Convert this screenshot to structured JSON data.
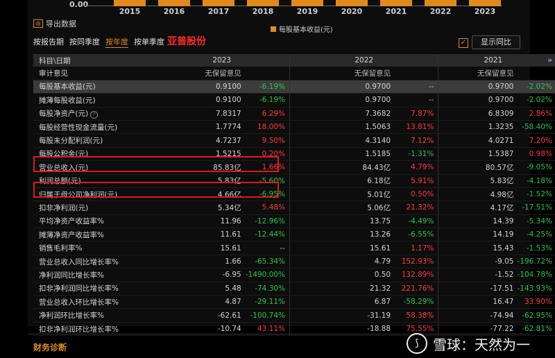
{
  "chart": {
    "y_zero_label": "0.00",
    "years": [
      "2015",
      "2016",
      "2017",
      "2018",
      "2019",
      "2020",
      "2021",
      "2022",
      "2023"
    ],
    "legend": "每股基本收益(元)",
    "accent_color": "#e08a1e"
  },
  "toolbar": {
    "export_label": "导出数据",
    "tabs": [
      "按报告期",
      "按同季度",
      "按年度",
      "按单季度"
    ],
    "active_tab": "按年度",
    "company_name": "亚普股份",
    "show_yoy_label": "显示同比",
    "show_yoy_checked": true
  },
  "table": {
    "header": {
      "label": "科目\\日期",
      "years": [
        "2023",
        "2022",
        "2021"
      ],
      "more": "»"
    },
    "rows": [
      {
        "label": "审计意见",
        "v": [
          "无保留意见",
          "",
          "无保留意见",
          "",
          "无保留意见",
          ""
        ],
        "t": [
          "neu",
          "neu",
          "neu",
          "neu",
          "neu",
          "neu"
        ]
      },
      {
        "label": "每股基本收益(元)",
        "v": [
          "0.9100",
          "-6.19%",
          "0.9700",
          "--",
          "0.9700",
          "-2.02%"
        ],
        "t": [
          "",
          "neg",
          "",
          "neu",
          "",
          "neg"
        ],
        "hl": true
      },
      {
        "label": "摊薄每股收益(元)",
        "v": [
          "0.9100",
          "-6.19%",
          "0.9700",
          "--",
          "0.9700",
          "-2.02%"
        ],
        "t": [
          "",
          "neg",
          "",
          "neu",
          "",
          "neg"
        ]
      },
      {
        "label": "每股净资产(元)",
        "v": [
          "7.8317",
          "6.29%",
          "7.3682",
          "7.87%",
          "6.8309",
          "2.86%"
        ],
        "t": [
          "",
          "pos",
          "",
          "pos",
          "",
          "pos"
        ],
        "help": true
      },
      {
        "label": "每股经营性现金流量(元)",
        "v": [
          "1.7774",
          "18.00%",
          "1.5063",
          "13.81%",
          "1.3235",
          "-58.40%"
        ],
        "t": [
          "",
          "pos",
          "",
          "pos",
          "",
          "neg"
        ]
      },
      {
        "label": "每股未分配利润(元)",
        "v": [
          "4.7237",
          "9.50%",
          "4.3140",
          "7.12%",
          "4.0271",
          "7.20%"
        ],
        "t": [
          "",
          "pos",
          "",
          "pos",
          "",
          "pos"
        ]
      },
      {
        "label": "每股公积金(元)",
        "v": [
          "1.5215",
          "0.20%",
          "1.5185",
          "-1.31%",
          "1.5387",
          "0.98%"
        ],
        "t": [
          "",
          "pos",
          "",
          "neg",
          "",
          "pos"
        ]
      },
      {
        "label": "营业总收入(元)",
        "v": [
          "85.83亿",
          "1.66%",
          "84.43亿",
          "4.79%",
          "80.57亿",
          "-9.05%"
        ],
        "t": [
          "",
          "pos",
          "",
          "pos",
          "",
          "neg"
        ]
      },
      {
        "label": "利润总额(元)",
        "v": [
          "5.83亿",
          "-5.60%",
          "6.18亿",
          "5.91%",
          "5.83亿",
          "-4.18%"
        ],
        "t": [
          "",
          "neg",
          "",
          "pos",
          "",
          "neg"
        ]
      },
      {
        "label": "归属于母公司净利润(元)",
        "v": [
          "4.66亿",
          "-6.95%",
          "5.01亿",
          "0.50%",
          "4.98亿",
          "-1.52%"
        ],
        "t": [
          "",
          "neg",
          "",
          "pos",
          "",
          "neg"
        ]
      },
      {
        "label": "扣非净利润(元)",
        "v": [
          "5.34亿",
          "5.48%",
          "5.06亿",
          "21.32%",
          "4.17亿",
          "-17.51%"
        ],
        "t": [
          "",
          "pos",
          "",
          "pos",
          "",
          "neg"
        ]
      },
      {
        "label": "平均净资产收益率%",
        "v": [
          "11.96",
          "-12.96%",
          "13.75",
          "-4.49%",
          "14.39",
          "-5.34%"
        ],
        "t": [
          "",
          "neg",
          "",
          "neg",
          "",
          "neg"
        ]
      },
      {
        "label": "摊薄净资产收益率%",
        "v": [
          "11.61",
          "-12.44%",
          "13.26",
          "-6.55%",
          "14.19",
          "-4.25%"
        ],
        "t": [
          "",
          "neg",
          "",
          "neg",
          "",
          "neg"
        ]
      },
      {
        "label": "销售毛利率%",
        "v": [
          "15.61",
          "--",
          "15.61",
          "1.17%",
          "15.43",
          "-1.53%"
        ],
        "t": [
          "",
          "neu",
          "",
          "pos",
          "",
          "neg"
        ]
      },
      {
        "label": "营业总收入同比增长率%",
        "v": [
          "1.66",
          "-65.34%",
          "4.79",
          "152.93%",
          "-9.05",
          "-196.72%"
        ],
        "t": [
          "",
          "neg",
          "",
          "pos",
          "",
          "neg"
        ]
      },
      {
        "label": "净利润同比增长率%",
        "v": [
          "-6.95",
          "-1490.00%",
          "0.50",
          "132.89%",
          "-1.52",
          "-104.78%"
        ],
        "t": [
          "",
          "neg",
          "",
          "pos",
          "",
          "neg"
        ]
      },
      {
        "label": "扣非净利润同比增长率%",
        "v": [
          "5.48",
          "-74.30%",
          "21.32",
          "221.76%",
          "-17.51",
          "-143.93%"
        ],
        "t": [
          "",
          "neg",
          "",
          "pos",
          "",
          "neg"
        ]
      },
      {
        "label": "营业总收入环比增长率%",
        "v": [
          "4.87",
          "-29.11%",
          "6.87",
          "-58.29%",
          "16.47",
          "33.90%"
        ],
        "t": [
          "",
          "neg",
          "",
          "neg",
          "",
          "pos"
        ]
      },
      {
        "label": "净利润环比增长率%",
        "v": [
          "-62.61",
          "-100.74%",
          "-31.19",
          "58.38%",
          "-74.94",
          "-62.95%"
        ],
        "t": [
          "",
          "neg",
          "",
          "pos",
          "",
          "neg"
        ]
      },
      {
        "label": "扣非净利润环比增长率%",
        "v": [
          "-10.74",
          "43.11%",
          "-18.88",
          "75.55%",
          "-77.22",
          "-62.81%"
        ],
        "t": [
          "",
          "pos",
          "",
          "pos",
          "",
          "neg"
        ]
      }
    ]
  },
  "footer": {
    "section_title": "财务诊断",
    "watermark": "雪球：天然为一"
  }
}
